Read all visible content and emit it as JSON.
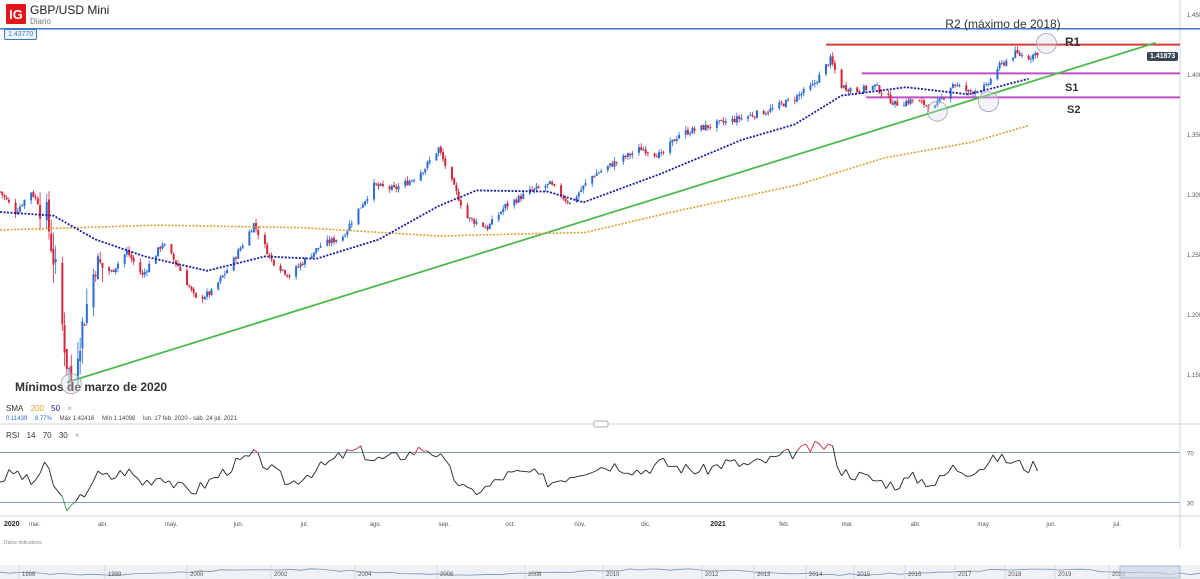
{
  "header": {
    "logo": "IG",
    "title": "GBP/USD Mini",
    "subtitle": "Diario"
  },
  "price_badges": {
    "top_level": "1.43770",
    "current": "1.41873"
  },
  "sma_legend": {
    "name": "SMA",
    "p1": "200",
    "p2": "50",
    "close": "×",
    "v1": "0.11439",
    "v2": "8.77%",
    "max": "Máx 1.42416",
    "min": "Mín 1.14098",
    "range": "lun. 17 feb. 2020 - sáb. 24 jul. 2021"
  },
  "rsi_legend": {
    "name": "RSI",
    "p1": "14",
    "p2": "70",
    "p3": "30",
    "close": "×"
  },
  "footer_note": "Datos indicativos",
  "annotations": {
    "r2": "R2 (máximo de 2018)",
    "r1": "R1",
    "s1": "S1",
    "s2": "S2",
    "low": "Mínimos de marzo de 2020"
  },
  "colors": {
    "up_candle": "#2b6cd4",
    "down_candle": "#d6263b",
    "sma50": "#1a1aa6",
    "sma200": "#e0a030",
    "trendline": "#4cbb4c",
    "r1_line": "#d63a3a",
    "support_line": "#c04fc6",
    "r2_line": "#3b78c5"
  },
  "chart_data": [
    {
      "type": "candlestick",
      "title": "GBP/USD Mini",
      "ylim": [
        1.13,
        1.45
      ],
      "y_ticks": [
        "1.45000",
        "1.40000",
        "1.35000",
        "1.30000",
        "1.25000",
        "1.20000",
        "1.15000"
      ],
      "x_ticks": [
        "2020",
        "mar.",
        "abr.",
        "may.",
        "jun.",
        "jul.",
        "ago.",
        "sep.",
        "oct.",
        "nov.",
        "dic.",
        "2021",
        "feb.",
        "mar.",
        "abr.",
        "may.",
        "jun.",
        "jul."
      ],
      "x_range": [
        "2020-02-17",
        "2021-07-24"
      ],
      "close_path": [
        [
          "2020-02-17",
          1.302
        ],
        [
          "2020-02-24",
          1.285
        ],
        [
          "2020-03-02",
          1.302
        ],
        [
          "2020-03-09",
          1.282
        ],
        [
          "2020-03-13",
          1.235
        ],
        [
          "2020-03-18",
          1.16
        ],
        [
          "2020-03-20",
          1.145
        ],
        [
          "2020-03-25",
          1.19
        ],
        [
          "2020-03-31",
          1.242
        ],
        [
          "2020-04-07",
          1.235
        ],
        [
          "2020-04-14",
          1.252
        ],
        [
          "2020-04-21",
          1.232
        ],
        [
          "2020-04-30",
          1.259
        ],
        [
          "2020-05-07",
          1.24
        ],
        [
          "2020-05-15",
          1.212
        ],
        [
          "2020-05-22",
          1.218
        ],
        [
          "2020-06-01",
          1.245
        ],
        [
          "2020-06-10",
          1.275
        ],
        [
          "2020-06-18",
          1.245
        ],
        [
          "2020-06-26",
          1.232
        ],
        [
          "2020-07-03",
          1.245
        ],
        [
          "2020-07-10",
          1.257
        ],
        [
          "2020-07-20",
          1.265
        ],
        [
          "2020-07-27",
          1.287
        ],
        [
          "2020-08-03",
          1.307
        ],
        [
          "2020-08-12",
          1.304
        ],
        [
          "2020-08-20",
          1.312
        ],
        [
          "2020-08-26",
          1.322
        ],
        [
          "2020-09-01",
          1.338
        ],
        [
          "2020-09-08",
          1.305
        ],
        [
          "2020-09-14",
          1.28
        ],
        [
          "2020-09-23",
          1.272
        ],
        [
          "2020-10-01",
          1.29
        ],
        [
          "2020-10-12",
          1.302
        ],
        [
          "2020-10-21",
          1.308
        ],
        [
          "2020-10-30",
          1.292
        ],
        [
          "2020-11-09",
          1.315
        ],
        [
          "2020-11-19",
          1.326
        ],
        [
          "2020-12-01",
          1.338
        ],
        [
          "2020-12-10",
          1.332
        ],
        [
          "2020-12-18",
          1.35
        ],
        [
          "2020-12-28",
          1.355
        ],
        [
          "2021-01-08",
          1.36
        ],
        [
          "2021-01-18",
          1.365
        ],
        [
          "2021-01-28",
          1.37
        ],
        [
          "2021-02-08",
          1.38
        ],
        [
          "2021-02-16",
          1.39
        ],
        [
          "2021-02-24",
          1.412
        ],
        [
          "2021-03-01",
          1.39
        ],
        [
          "2021-03-08",
          1.386
        ],
        [
          "2021-03-16",
          1.39
        ],
        [
          "2021-03-25",
          1.375
        ],
        [
          "2021-04-02",
          1.378
        ],
        [
          "2021-04-12",
          1.372
        ],
        [
          "2021-04-20",
          1.392
        ],
        [
          "2021-04-27",
          1.385
        ],
        [
          "2021-05-05",
          1.389
        ],
        [
          "2021-05-10",
          1.405
        ],
        [
          "2021-05-18",
          1.417
        ],
        [
          "2021-05-24",
          1.414
        ],
        [
          "2021-05-28",
          1.418
        ]
      ],
      "sma50": [
        [
          "2020-02-17",
          1.285
        ],
        [
          "2020-03-12",
          1.282
        ],
        [
          "2020-03-31",
          1.262
        ],
        [
          "2020-04-22",
          1.248
        ],
        [
          "2020-05-20",
          1.236
        ],
        [
          "2020-06-15",
          1.248
        ],
        [
          "2020-07-08",
          1.246
        ],
        [
          "2020-08-05",
          1.262
        ],
        [
          "2020-09-01",
          1.29
        ],
        [
          "2020-09-18",
          1.303
        ],
        [
          "2020-10-20",
          1.302
        ],
        [
          "2020-11-05",
          1.293
        ],
        [
          "2020-12-10",
          1.317
        ],
        [
          "2021-01-15",
          1.345
        ],
        [
          "2021-02-08",
          1.358
        ],
        [
          "2021-03-01",
          1.382
        ],
        [
          "2021-03-30",
          1.389
        ],
        [
          "2021-04-27",
          1.383
        ],
        [
          "2021-05-24",
          1.396
        ]
      ],
      "sma200": [
        [
          "2020-02-17",
          1.27
        ],
        [
          "2020-04-28",
          1.274
        ],
        [
          "2020-07-01",
          1.272
        ],
        [
          "2020-09-01",
          1.265
        ],
        [
          "2020-11-06",
          1.268
        ],
        [
          "2020-12-15",
          1.285
        ],
        [
          "2021-02-10",
          1.308
        ],
        [
          "2021-03-20",
          1.33
        ],
        [
          "2021-04-28",
          1.343
        ],
        [
          "2021-05-24",
          1.357
        ]
      ],
      "trendline": [
        [
          "2020-03-18",
          1.143
        ],
        [
          "2021-07-20",
          1.426
        ]
      ],
      "levels": [
        {
          "name": "R2 (máximo de 2018)",
          "value": 1.4377
        },
        {
          "name": "R1",
          "value": 1.4245
        },
        {
          "name": "S1",
          "value": 1.4005
        },
        {
          "name": "S2",
          "value": 1.3805
        }
      ]
    },
    {
      "type": "line",
      "title": "RSI",
      "ylim": [
        20,
        80
      ],
      "y_ticks": [
        "70",
        "30"
      ],
      "levels": [
        70,
        30
      ],
      "values": [
        48,
        55,
        45,
        60,
        40,
        28,
        24,
        35,
        52,
        50,
        56,
        46,
        52,
        42,
        40,
        48,
        60,
        68,
        56,
        45,
        52,
        58,
        68,
        72,
        64,
        66,
        70,
        74,
        68,
        50,
        38,
        42,
        52,
        54,
        46,
        52,
        58,
        60,
        55,
        62,
        58,
        55,
        62,
        60,
        64,
        70,
        74,
        76,
        55,
        52,
        48,
        44,
        50,
        45,
        58,
        55,
        60,
        66,
        62,
        58,
        60
      ]
    }
  ]
}
